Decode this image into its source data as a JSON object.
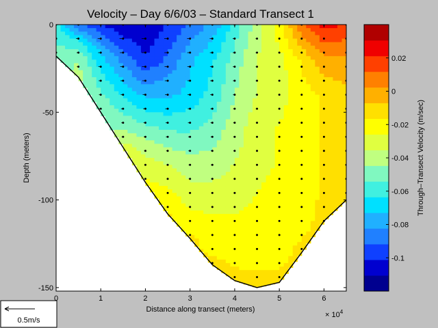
{
  "chart_data": {
    "type": "heatmap",
    "title": "Velocity – Day 6/6/03 – Standard Transect 1",
    "xlabel": "Distance along transect (meters)",
    "ylabel": "Depth (meters)",
    "x_multiplier_label": "× 10",
    "x_multiplier_exponent": "4",
    "xlim": [
      0,
      65000
    ],
    "ylim": [
      -152,
      0
    ],
    "x_ticks": [
      0,
      1,
      2,
      3,
      4,
      5,
      6
    ],
    "x_tick_labels": [
      "0",
      "1",
      "2",
      "3",
      "4",
      "5",
      "6"
    ],
    "y_ticks": [
      0,
      -50,
      -100,
      -150
    ],
    "y_tick_labels": [
      "0",
      "-50",
      "-100",
      "-150"
    ],
    "colorbar": {
      "label": "Through–Transect Velocity (m/sec)",
      "range": [
        -0.12,
        0.04
      ],
      "ticks": [
        0.02,
        0,
        -0.02,
        -0.04,
        -0.06,
        -0.08,
        -0.1
      ],
      "tick_labels": [
        "0.02",
        "0",
        "-0.02",
        "-0.04",
        "-0.06",
        "-0.08",
        "-0.1"
      ],
      "colors": [
        "#00008f",
        "#0000cf",
        "#0f40ff",
        "#2080ff",
        "#20b0ff",
        "#00e0ff",
        "#40f0e0",
        "#80f8c0",
        "#c0ff80",
        "#e0ff40",
        "#ffff00",
        "#ffe000",
        "#ffb000",
        "#ff8000",
        "#ff4000",
        "#f00000",
        "#b00000"
      ]
    },
    "bottom_profile": [
      [
        0,
        -18
      ],
      [
        5000,
        -30
      ],
      [
        10000,
        -50
      ],
      [
        15000,
        -70
      ],
      [
        20000,
        -90
      ],
      [
        25000,
        -108
      ],
      [
        30000,
        -122
      ],
      [
        35000,
        -137
      ],
      [
        40000,
        -146
      ],
      [
        45000,
        -150
      ],
      [
        50000,
        -147
      ],
      [
        55000,
        -130
      ],
      [
        60000,
        -112
      ],
      [
        65000,
        -100
      ]
    ],
    "station_x": [
      0,
      5000,
      10000,
      15000,
      20000,
      25000,
      30000,
      35000,
      40000,
      45000,
      50000,
      55000,
      60000,
      65000
    ],
    "velocity_stations": [
      {
        "x": 0,
        "values": [
          [
            0,
            -0.06
          ],
          [
            -18,
            -0.05
          ]
        ]
      },
      {
        "x": 5000,
        "values": [
          [
            0,
            -0.09
          ],
          [
            -10,
            -0.06
          ],
          [
            -20,
            -0.045
          ],
          [
            -30,
            -0.04
          ]
        ]
      },
      {
        "x": 10000,
        "values": [
          [
            0,
            -0.1
          ],
          [
            -15,
            -0.075
          ],
          [
            -30,
            -0.06
          ],
          [
            -50,
            -0.045
          ]
        ]
      },
      {
        "x": 15000,
        "values": [
          [
            0,
            -0.11
          ],
          [
            -20,
            -0.085
          ],
          [
            -40,
            -0.065
          ],
          [
            -60,
            -0.045
          ],
          [
            -70,
            -0.03
          ]
        ]
      },
      {
        "x": 20000,
        "values": [
          [
            0,
            -0.11
          ],
          [
            -20,
            -0.1
          ],
          [
            -40,
            -0.075
          ],
          [
            -60,
            -0.05
          ],
          [
            -80,
            -0.03
          ],
          [
            -90,
            -0.025
          ]
        ]
      },
      {
        "x": 25000,
        "values": [
          [
            0,
            -0.1
          ],
          [
            -20,
            -0.09
          ],
          [
            -40,
            -0.075
          ],
          [
            -60,
            -0.055
          ],
          [
            -80,
            -0.035
          ],
          [
            -100,
            -0.02
          ],
          [
            -108,
            -0.015
          ]
        ]
      },
      {
        "x": 30000,
        "values": [
          [
            0,
            -0.09
          ],
          [
            -20,
            -0.075
          ],
          [
            -40,
            -0.07
          ],
          [
            -60,
            -0.055
          ],
          [
            -80,
            -0.04
          ],
          [
            -100,
            -0.03
          ],
          [
            -122,
            -0.015
          ]
        ]
      },
      {
        "x": 35000,
        "values": [
          [
            0,
            -0.08
          ],
          [
            -20,
            -0.065
          ],
          [
            -40,
            -0.06
          ],
          [
            -60,
            -0.05
          ],
          [
            -80,
            -0.04
          ],
          [
            -100,
            -0.03
          ],
          [
            -120,
            -0.02
          ],
          [
            -137,
            -0.015
          ]
        ]
      },
      {
        "x": 40000,
        "values": [
          [
            0,
            -0.06
          ],
          [
            -20,
            -0.05
          ],
          [
            -40,
            -0.045
          ],
          [
            -60,
            -0.04
          ],
          [
            -80,
            -0.035
          ],
          [
            -100,
            -0.03
          ],
          [
            -120,
            -0.02
          ],
          [
            -146,
            -0.015
          ]
        ]
      },
      {
        "x": 45000,
        "values": [
          [
            0,
            -0.04
          ],
          [
            -20,
            -0.035
          ],
          [
            -40,
            -0.035
          ],
          [
            -60,
            -0.03
          ],
          [
            -80,
            -0.03
          ],
          [
            -100,
            -0.025
          ],
          [
            -120,
            -0.02
          ],
          [
            -150,
            -0.015
          ]
        ]
      },
      {
        "x": 50000,
        "values": [
          [
            0,
            -0.02
          ],
          [
            -20,
            -0.03
          ],
          [
            -40,
            -0.03
          ],
          [
            -60,
            -0.025
          ],
          [
            -80,
            -0.025
          ],
          [
            -100,
            -0.02
          ],
          [
            -120,
            -0.02
          ],
          [
            -147,
            -0.015
          ]
        ]
      },
      {
        "x": 55000,
        "values": [
          [
            0,
            0.01
          ],
          [
            -20,
            -0.015
          ],
          [
            -40,
            -0.02
          ],
          [
            -60,
            -0.02
          ],
          [
            -80,
            -0.02
          ],
          [
            -100,
            -0.02
          ],
          [
            -130,
            -0.015
          ]
        ]
      },
      {
        "x": 60000,
        "values": [
          [
            0,
            0.025
          ],
          [
            -20,
            0
          ],
          [
            -40,
            -0.015
          ],
          [
            -60,
            -0.015
          ],
          [
            -80,
            -0.015
          ],
          [
            -112,
            -0.015
          ]
        ]
      },
      {
        "x": 65000,
        "values": [
          [
            0,
            0.02
          ],
          [
            -20,
            0
          ],
          [
            -40,
            -0.01
          ],
          [
            -60,
            -0.01
          ],
          [
            -80,
            -0.01
          ],
          [
            -100,
            -0.01
          ]
        ]
      }
    ],
    "scale_arrow": {
      "label": "0.5m/s",
      "value": 0.5
    }
  }
}
